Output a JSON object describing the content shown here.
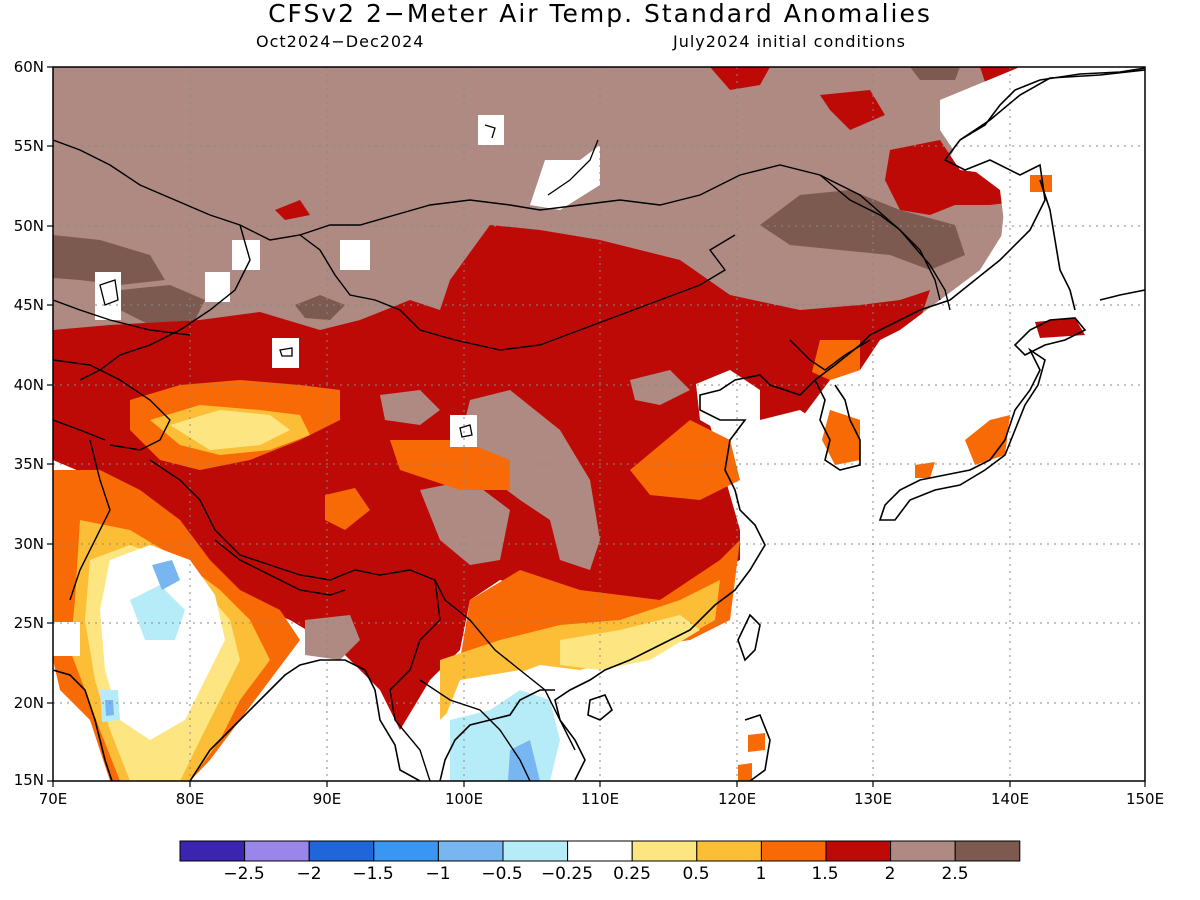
{
  "title": "CFSv2 2-Meter Air Temp. Standard Anomalies",
  "subtitle_left": "Oct2024-Dec2024",
  "subtitle_right": "July2024 initial conditions",
  "lat_labels": [
    "60N",
    "55N",
    "50N",
    "45N",
    "40N",
    "35N",
    "30N",
    "25N",
    "20N",
    "15N"
  ],
  "lon_labels": [
    "70E",
    "80E",
    "90E",
    "100E",
    "110E",
    "120E",
    "130E",
    "140E",
    "150E"
  ],
  "colorbar": {
    "colors": [
      "#3b24b0",
      "#9a86ea",
      "#1f66db",
      "#3b96f1",
      "#78b6f2",
      "#b6ecf8",
      "#ffffff",
      "#fde682",
      "#fdbe37",
      "#f86a05",
      "#bd0a06",
      "#ae8a82",
      "#7d5a50"
    ],
    "tick_labels": [
      "-2.5",
      "-2",
      "-1.5",
      "-1",
      "-0.5",
      "-0.25",
      "0.25",
      "0.5",
      "1",
      "1.5",
      "2",
      "2.5"
    ]
  },
  "map_extent": {
    "lon": [
      70,
      150
    ],
    "lat": [
      15,
      60
    ]
  }
}
